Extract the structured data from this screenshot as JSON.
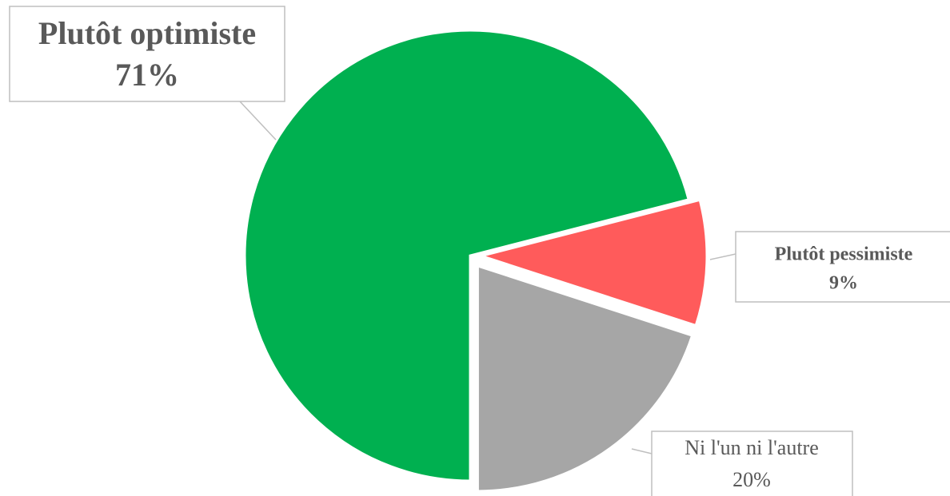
{
  "chart_data": {
    "type": "pie",
    "categories": [
      "Plutôt optimiste",
      "Plutôt pessimiste",
      "Ni l'un ni l'autre"
    ],
    "values": [
      71,
      9,
      20
    ],
    "value_labels": [
      "71%",
      "9%",
      "20%"
    ],
    "colors": [
      "#00b050",
      "#ff5b5b",
      "#a6a6a6"
    ]
  }
}
